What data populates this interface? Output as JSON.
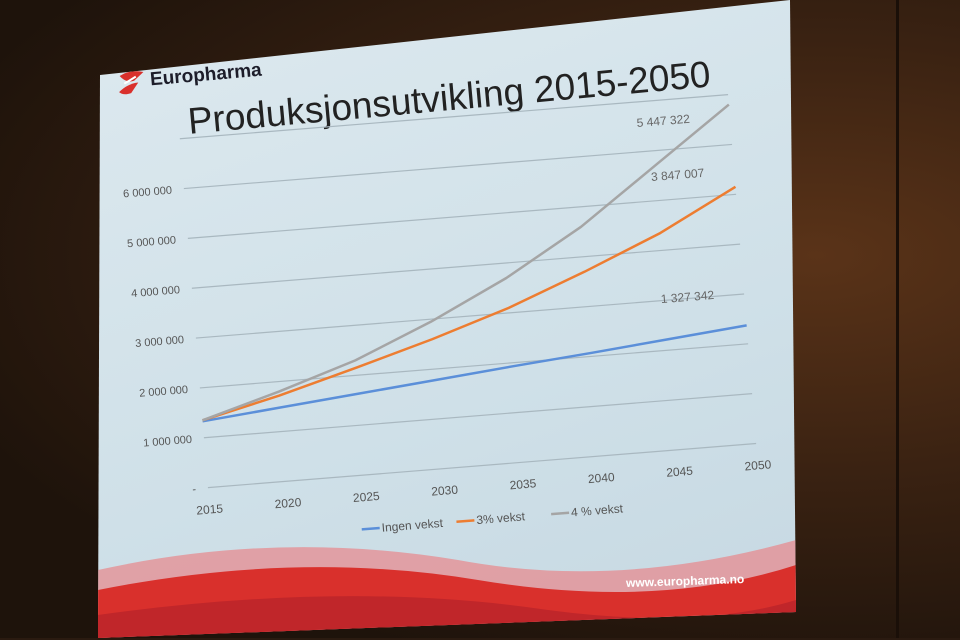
{
  "slide": {
    "logo_text": "Europharma",
    "title": "Produksjonsutvikling 2015-2050",
    "url": "www.europharma.no"
  },
  "chart_data": {
    "type": "line",
    "title": "Produksjonsutvikling 2015-2050",
    "x": [
      "2015",
      "2020",
      "2025",
      "2030",
      "2035",
      "2040",
      "2045",
      "2050"
    ],
    "ylim": [
      0,
      7000000
    ],
    "yticks": [
      "-",
      "1 000 000",
      "2 000 000",
      "3 000 000",
      "4 000 000",
      "5 000 000",
      "6 000 000"
    ],
    "grid": true,
    "legend": "bottom",
    "series": [
      {
        "name": "Ingen vekst",
        "color": "#5b8fd9",
        "values": [
          1330000,
          1480000,
          1630000,
          1780000,
          1930000,
          2070000,
          2220000,
          2370000
        ]
      },
      {
        "name": "3% vekst",
        "color": "#ed7d31",
        "values": [
          1350000,
          1720000,
          2150000,
          2600000,
          3100000,
          3700000,
          4350000,
          5150000
        ]
      },
      {
        "name": "4 % vekst",
        "color": "#a5a5a5",
        "values": [
          1350000,
          1800000,
          2300000,
          2950000,
          3700000,
          4600000,
          5700000,
          6800000
        ]
      }
    ],
    "annotations": [
      "5 447 322",
      "3 847 007",
      "1 327 342"
    ]
  },
  "colors": {
    "slide_bg": "#d4e3ea",
    "wave_red": "#d9302c"
  }
}
